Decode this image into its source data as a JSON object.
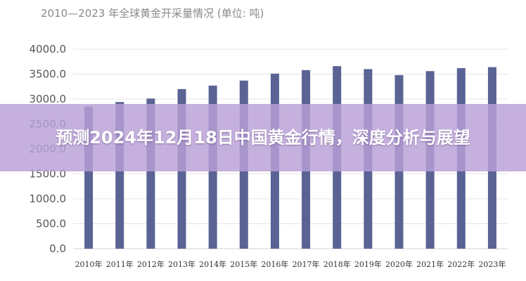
{
  "chart_data": {
    "type": "bar",
    "title": "2010—2023 年全球黄金开采量情况 (单位: 吨)",
    "categories": [
      "2010年",
      "2011年",
      "2012年",
      "2013年",
      "2014年",
      "2015年",
      "2016年",
      "2017年",
      "2018年",
      "2019年",
      "2020年",
      "2021年",
      "2022年",
      "2023年"
    ],
    "values": [
      2850,
      2940,
      3010,
      3200,
      3270,
      3370,
      3510,
      3580,
      3660,
      3600,
      3480,
      3560,
      3620,
      3640
    ],
    "y_ticks": [
      "0.0",
      "500.0",
      "1000.0",
      "1500.0",
      "2000.0",
      "2500.0",
      "3000.0",
      "3500.0",
      "4000.0"
    ],
    "ylim": [
      0,
      4000
    ],
    "grid": true,
    "bar_color": "#5a6394"
  },
  "overlay": {
    "headline": "预测2024年12月18日中国黄金行情，深度分析与展望",
    "background": "#baa0d7"
  }
}
